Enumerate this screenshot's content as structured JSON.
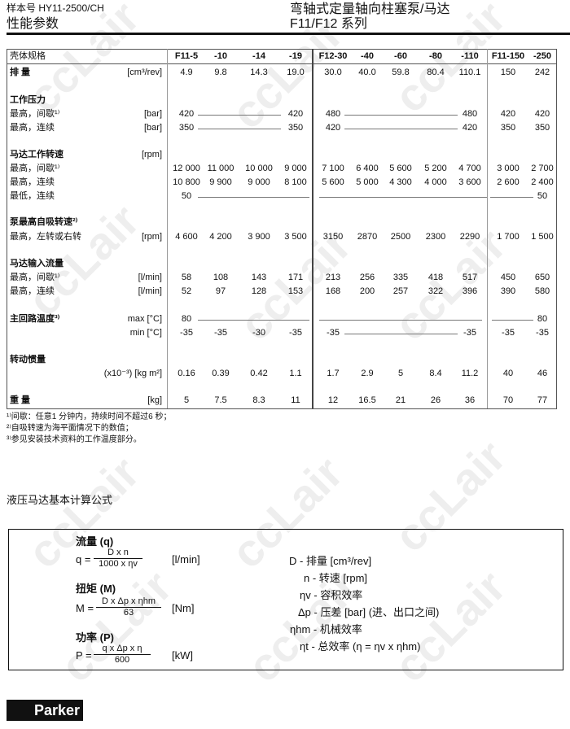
{
  "header": {
    "doc_no": "样本号 HY11-2500/CH",
    "section": "性能参数",
    "title": "弯轴式定量轴向柱塞泵/马达",
    "series": "F11/F12  系列"
  },
  "table": {
    "corner": "壳体规格",
    "columns": [
      "F11-5",
      "-10",
      "-14",
      "-19",
      "F12-30",
      "-40",
      "-60",
      "-80",
      "-110",
      "F11-150",
      "-250"
    ],
    "rows": [
      {
        "label": "排 量",
        "unit": "[cm³/rev]",
        "bold": true,
        "values": [
          "4.9",
          "9.8",
          "14.3",
          "19.0",
          "30.0",
          "40.0",
          "59.8",
          "80.4",
          "110.1",
          "150",
          "242"
        ]
      },
      {
        "label": "工作压力",
        "unit": "",
        "bold": true,
        "values": []
      },
      {
        "label": "最高，间歇¹⁾",
        "unit": "[bar]",
        "values": [
          "420",
          "",
          "",
          "420",
          "480",
          "",
          "",
          "",
          "480",
          "420",
          "420"
        ]
      },
      {
        "label": "最高，连续",
        "unit": "[bar]",
        "values": [
          "350",
          "",
          "",
          "350",
          "420",
          "",
          "",
          "",
          "420",
          "350",
          "350"
        ]
      },
      {
        "label": "马达工作转速",
        "unit": "[rpm]",
        "bold": true,
        "values": []
      },
      {
        "label": "最高，间歇¹⁾",
        "unit": "",
        "values": [
          "12 000",
          "11 000",
          "10 000",
          "9 000",
          "7 100",
          "6 400",
          "5 600",
          "5 200",
          "4 700",
          "3 000",
          "2 700"
        ]
      },
      {
        "label": "最高，连续",
        "unit": "",
        "values": [
          "10 800",
          "9 900",
          "9 000",
          "8 100",
          "5 600",
          "5 000",
          "4 300",
          "4 000",
          "3 600",
          "2 600",
          "2 400"
        ]
      },
      {
        "label": "最低，连续",
        "unit": "",
        "values": [
          "50",
          "",
          "",
          "",
          "",
          "",
          "",
          "",
          "",
          "",
          "50"
        ]
      },
      {
        "label": "泵最高自吸转速²⁾",
        "unit": "",
        "bold": true,
        "values": []
      },
      {
        "label": "最高，左转或右转",
        "unit": "[rpm]",
        "values": [
          "4 600",
          "4 200",
          "3 900",
          "3 500",
          "3150",
          "2870",
          "2500",
          "2300",
          "2290",
          "1 700",
          "1 500"
        ]
      },
      {
        "label": "马达输入流量",
        "unit": "",
        "bold": true,
        "values": []
      },
      {
        "label": "最高，间歇¹⁾",
        "unit": "[l/min]",
        "values": [
          "58",
          "108",
          "143",
          "171",
          "213",
          "256",
          "335",
          "418",
          "517",
          "450",
          "650"
        ]
      },
      {
        "label": "最高，连续",
        "unit": "[l/min]",
        "values": [
          "52",
          "97",
          "128",
          "153",
          "168",
          "200",
          "257",
          "322",
          "396",
          "390",
          "580"
        ]
      },
      {
        "label": "主回路温度³⁾",
        "unit": "max [°C]",
        "bold": true,
        "values": [
          "80",
          "",
          "",
          "",
          "",
          "",
          "",
          "",
          "",
          "",
          "80"
        ]
      },
      {
        "label": "",
        "unit": "min [°C]",
        "values": [
          "-35",
          "-35",
          "-30",
          "-35",
          "-35",
          "",
          "",
          "",
          "-35",
          "-35",
          "-35"
        ]
      },
      {
        "label": "转动惯量",
        "unit": "",
        "bold": true,
        "values": []
      },
      {
        "label": "",
        "unit": "(x10⁻³) [kg m²]",
        "values": [
          "0.16",
          "0.39",
          "0.42",
          "1.1",
          "1.7",
          "2.9",
          "5",
          "8.4",
          "11.2",
          "40",
          "46"
        ]
      },
      {
        "label": "重 量",
        "unit": "[kg]",
        "bold": true,
        "values": [
          "5",
          "7.5",
          "8.3",
          "11",
          "12",
          "16.5",
          "21",
          "26",
          "36",
          "70",
          "77"
        ]
      }
    ]
  },
  "footnotes": [
    "¹⁾间歇：任意1 分钟内，持续时间不超过6 秒；",
    "²⁾自吸转速为海平面情况下的数值；",
    "³⁾参见安装技术资料的工作温度部分。"
  ],
  "formulas": {
    "heading": "液压马达基本计算公式",
    "flow": {
      "title": "流量 (q)",
      "lhs": "q =",
      "num": "D x n",
      "den": "1000 x ηv",
      "unit": "[l/min]"
    },
    "torque": {
      "title": "扭矩 (M)",
      "lhs": "M =",
      "num": "D x Δp x ηhm",
      "den": "63",
      "unit": "[Nm]"
    },
    "power": {
      "title": "功率 (P)",
      "lhs": "P =",
      "num": "q x Δp x η",
      "den": "600",
      "unit": "[kW]"
    },
    "legend": [
      "D - 排量 [cm³/rev]",
      "n - 转速 [rpm]",
      "ηv - 容积效率",
      "Δp - 压差 [bar] (进、出口之间)",
      "ηhm - 机械效率",
      "ηt - 总效率 (η  =  ηv x ηhm)"
    ]
  },
  "footer": {
    "logo": "Parker"
  },
  "watermark": "ccLair"
}
